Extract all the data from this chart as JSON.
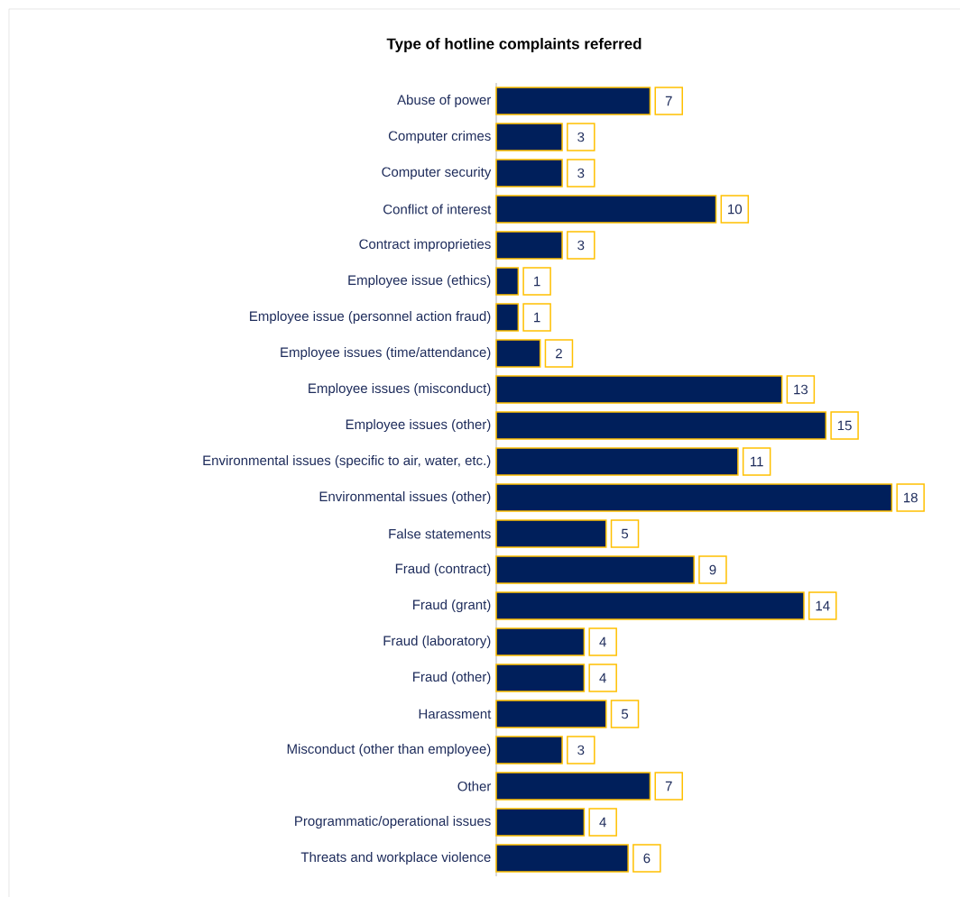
{
  "chart_data": {
    "type": "bar",
    "orientation": "horizontal",
    "title": "Type of hotline complaints referred",
    "categories": [
      "Abuse of power",
      "Computer crimes",
      "Computer security",
      "Conflict of interest",
      "Contract improprieties",
      "Employee issue (ethics)",
      "Employee issue (personnel action fraud)",
      "Employee issues (time/attendance)",
      "Employee issues (misconduct)",
      "Employee issues (other)",
      "Environmental issues (specific to air, water, etc.)",
      "Environmental issues (other)",
      "False statements",
      "Fraud (contract)",
      "Fraud (grant)",
      "Fraud (laboratory)",
      "Fraud (other)",
      "Harassment",
      "Misconduct (other than employee)",
      "Other",
      "Programmatic/operational issues",
      "Threats and workplace violence"
    ],
    "values": [
      7,
      3,
      3,
      10,
      3,
      1,
      1,
      2,
      13,
      15,
      11,
      18,
      5,
      9,
      14,
      4,
      4,
      5,
      3,
      7,
      4,
      6
    ],
    "color": "#001f5b",
    "data_labels": true
  }
}
